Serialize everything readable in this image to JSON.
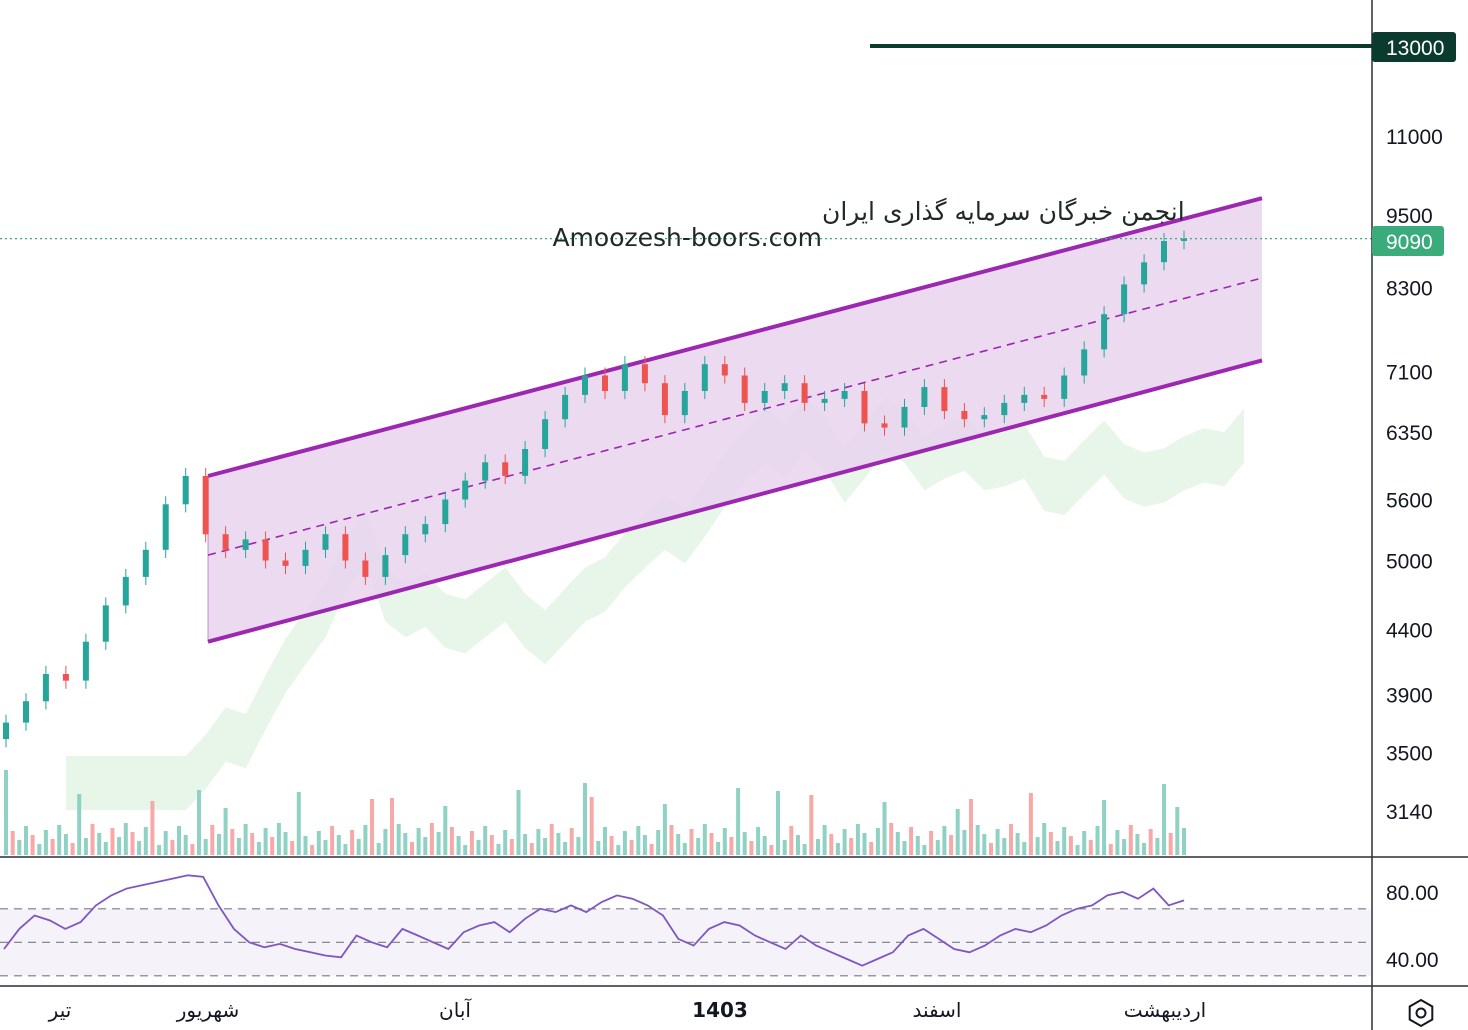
{
  "chart_data": {
    "type": "candlestick",
    "title": "",
    "watermark": {
      "line1": "انجمن خبرگان سرمایه گذاری ایران",
      "line2": "Amoozesh-boors.com"
    },
    "price_axis": {
      "scale": "log",
      "ticks": [
        "11000",
        "9500",
        "8300",
        "7100",
        "6350",
        "5600",
        "5000",
        "4400",
        "3900",
        "3500",
        "3140"
      ],
      "range": [
        2900,
        14500
      ]
    },
    "time_axis": {
      "ticks": [
        "تیر",
        "شهریور",
        "آبان",
        "1403",
        "اسفند",
        "اردیبهشت"
      ],
      "bold": [
        "1403"
      ]
    },
    "horizontal_level": {
      "value": 13000,
      "label": "13000",
      "color": "#0b3b2e"
    },
    "last_price": {
      "value": 9090,
      "label": "9090",
      "color": "#3aab7b"
    },
    "channel": {
      "type": "ascending regression channel",
      "upper": [
        [
          5850,
          9800
        ]
      ],
      "middle": [
        [
          5050,
          8450
        ]
      ],
      "lower": [
        [
          4300,
          7250
        ]
      ],
      "fill": "#e9d4ef",
      "line_color": "#9c27b0"
    },
    "candles_approx": [
      3700,
      3850,
      4050,
      4000,
      4300,
      4600,
      4850,
      5100,
      5550,
      5850,
      5250,
      5100,
      5200,
      5000,
      4950,
      5100,
      5250,
      5000,
      4850,
      5050,
      5250,
      5350,
      5600,
      5800,
      6000,
      5850,
      6150,
      6500,
      6800,
      7050,
      6850,
      7200,
      6950,
      6550,
      6850,
      7200,
      7050,
      6700,
      6850,
      6950,
      6700,
      6750,
      6850,
      6450,
      6400,
      6650,
      6900,
      6600,
      6500,
      6550,
      6700,
      6800,
      6750,
      7050,
      7400,
      7900,
      8350,
      8700,
      9050,
      9090
    ],
    "series": [
      {
        "name": "",
        "colors": {
          "up": "#26a69a",
          "down": "#ef5350"
        }
      }
    ],
    "rsi": {
      "ticks": [
        "80.00",
        "40.00"
      ],
      "band": [
        30,
        70
      ],
      "mid": 50,
      "line_color": "#7e57c2",
      "values": [
        46,
        58,
        66,
        63,
        58,
        62,
        72,
        78,
        82,
        84,
        86,
        88,
        90,
        89,
        72,
        58,
        50,
        47,
        49,
        46,
        44,
        42,
        41,
        54,
        50,
        47,
        58,
        54,
        50,
        46,
        56,
        60,
        62,
        56,
        64,
        70,
        68,
        72,
        68,
        74,
        78,
        76,
        72,
        66,
        52,
        48,
        58,
        62,
        60,
        54,
        50,
        46,
        54,
        48,
        44,
        40,
        36,
        40,
        44,
        54,
        58,
        52,
        46,
        44,
        48,
        54,
        58,
        56,
        60,
        66,
        70,
        72,
        78,
        80,
        76,
        82,
        72,
        75
      ]
    }
  }
}
